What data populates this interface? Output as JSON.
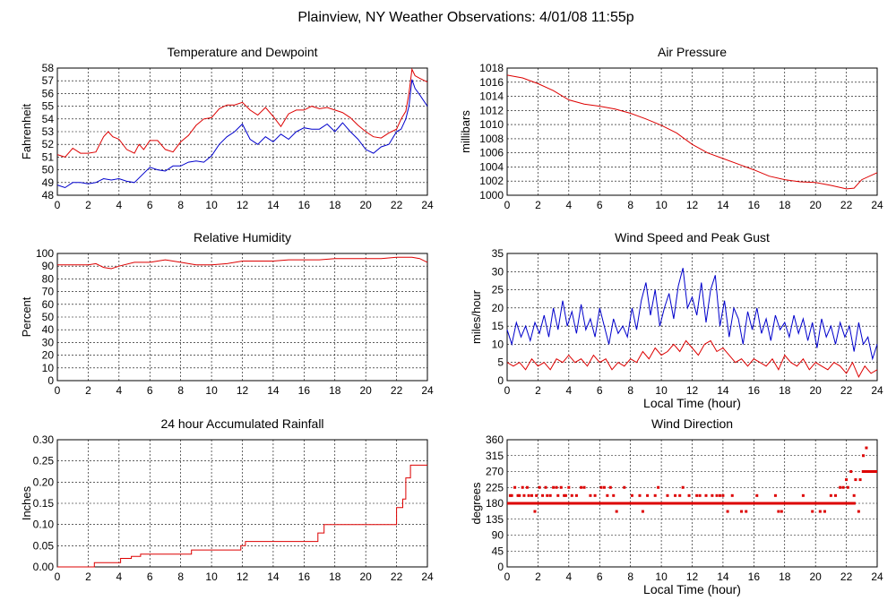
{
  "page_title": "Plainview, NY Weather Observations: 4/01/08 11:55p",
  "colors": {
    "primary": "#dd0000",
    "secondary": "#0000cc",
    "grid": "#000000",
    "text": "#000000"
  },
  "chart_data": [
    {
      "id": "temperature",
      "type": "line",
      "title": "Temperature and Dewpoint",
      "xlabel": "",
      "ylabel": "Fahrenheit",
      "xlim": [
        0,
        24
      ],
      "ylim": [
        48,
        58
      ],
      "xticks": [
        "0",
        "2",
        "4",
        "6",
        "8",
        "10",
        "12",
        "14",
        "16",
        "18",
        "20",
        "22",
        "24"
      ],
      "yticks": [
        "48",
        "49",
        "50",
        "51",
        "52",
        "53",
        "54",
        "55",
        "56",
        "57",
        "58"
      ],
      "grid": true,
      "series": [
        {
          "color": "#dd0000",
          "x": [
            0,
            0.5,
            1,
            1.5,
            2,
            2.5,
            3,
            3.3,
            3.6,
            4,
            4.5,
            5,
            5.3,
            5.6,
            6,
            6.5,
            7,
            7.5,
            8,
            8.5,
            9,
            9.5,
            10,
            10.5,
            11,
            11.5,
            12,
            12.5,
            13,
            13.5,
            14,
            14.5,
            15,
            15.5,
            16,
            16.5,
            17,
            17.5,
            18,
            18.5,
            19,
            19.5,
            20,
            20.5,
            21,
            21.5,
            22,
            22.3,
            22.6,
            22.8,
            23,
            23.2,
            23.5,
            24
          ],
          "y": [
            51.2,
            51.0,
            51.7,
            51.3,
            51.3,
            51.4,
            52.6,
            53.0,
            52.6,
            52.4,
            51.6,
            51.3,
            52.0,
            51.6,
            52.3,
            52.3,
            51.6,
            51.4,
            52.2,
            52.7,
            53.5,
            54.0,
            54.1,
            54.8,
            55.1,
            55.1,
            55.3,
            54.7,
            54.3,
            54.9,
            54.2,
            53.4,
            54.4,
            54.7,
            54.7,
            55.0,
            54.8,
            54.9,
            54.7,
            54.5,
            54.1,
            53.5,
            53.0,
            52.6,
            52.5,
            52.9,
            53.2,
            54.0,
            54.6,
            56.0,
            57.9,
            57.4,
            57.2,
            56.9
          ]
        },
        {
          "color": "#0000cc",
          "x": [
            0,
            0.5,
            1,
            1.5,
            2,
            2.5,
            3,
            3.5,
            4,
            4.5,
            5,
            5.5,
            6,
            6.5,
            7,
            7.5,
            8,
            8.5,
            9,
            9.5,
            10,
            10.5,
            11,
            11.5,
            12,
            12.5,
            13,
            13.5,
            14,
            14.5,
            15,
            15.5,
            16,
            16.5,
            17,
            17.5,
            18,
            18.5,
            19,
            19.5,
            20,
            20.5,
            21,
            21.5,
            22,
            22.3,
            22.6,
            22.8,
            23,
            23.2,
            23.5,
            24
          ],
          "y": [
            48.8,
            48.6,
            49.0,
            49.0,
            48.9,
            49.0,
            49.3,
            49.2,
            49.3,
            49.1,
            49.0,
            49.6,
            50.2,
            50.0,
            49.9,
            50.3,
            50.3,
            50.6,
            50.7,
            50.6,
            51.1,
            52.0,
            52.6,
            53.0,
            53.6,
            52.4,
            52.0,
            52.6,
            52.2,
            52.8,
            52.4,
            53.0,
            53.3,
            53.2,
            53.2,
            53.6,
            53.0,
            53.7,
            53.0,
            52.4,
            51.6,
            51.3,
            51.8,
            52.0,
            53.0,
            53.2,
            54.0,
            55.0,
            57.1,
            56.4,
            55.9,
            55.0
          ]
        }
      ]
    },
    {
      "id": "pressure",
      "type": "line",
      "title": "Air Pressure",
      "xlabel": "",
      "ylabel": "millibars",
      "xlim": [
        0,
        24
      ],
      "ylim": [
        1000,
        1018
      ],
      "xticks": [
        "0",
        "2",
        "4",
        "6",
        "8",
        "10",
        "12",
        "14",
        "16",
        "18",
        "20",
        "22",
        "24"
      ],
      "yticks": [
        "1000",
        "1002",
        "1004",
        "1006",
        "1008",
        "1010",
        "1012",
        "1014",
        "1016",
        "1018"
      ],
      "grid": true,
      "series": [
        {
          "color": "#dd0000",
          "x": [
            0,
            1,
            2,
            3,
            4,
            5,
            6,
            7,
            8,
            9,
            10,
            11,
            12,
            13,
            14,
            15,
            16,
            17,
            18,
            19,
            20,
            21,
            22,
            22.5,
            23,
            24
          ],
          "y": [
            1017.0,
            1016.6,
            1015.8,
            1014.8,
            1013.5,
            1012.9,
            1012.6,
            1012.2,
            1011.6,
            1010.8,
            1009.9,
            1008.8,
            1007.2,
            1006.0,
            1005.2,
            1004.4,
            1003.6,
            1002.7,
            1002.2,
            1001.9,
            1001.8,
            1001.4,
            1000.9,
            1001.0,
            1002.2,
            1003.2
          ]
        }
      ]
    },
    {
      "id": "humidity",
      "type": "line",
      "title": "Relative Humidity",
      "xlabel": "",
      "ylabel": "Percent",
      "xlim": [
        0,
        24
      ],
      "ylim": [
        0,
        100
      ],
      "xticks": [
        "0",
        "2",
        "4",
        "6",
        "8",
        "10",
        "12",
        "14",
        "16",
        "18",
        "20",
        "22",
        "24"
      ],
      "yticks": [
        "0",
        "10",
        "20",
        "30",
        "40",
        "50",
        "60",
        "70",
        "80",
        "90",
        "100"
      ],
      "grid": true,
      "series": [
        {
          "color": "#dd0000",
          "x": [
            0,
            1,
            2,
            2.5,
            3,
            3.5,
            4,
            5,
            6,
            7,
            8,
            9,
            10,
            11,
            12,
            13,
            14,
            15,
            16,
            17,
            18,
            19,
            20,
            21,
            22,
            23,
            23.5,
            24
          ],
          "y": [
            91,
            91,
            91,
            92,
            89,
            88,
            90,
            93,
            93,
            95,
            93,
            91,
            91,
            92,
            94,
            94,
            94,
            95,
            95,
            95,
            96,
            96,
            96,
            96,
            97,
            97,
            96,
            93
          ]
        }
      ]
    },
    {
      "id": "wind",
      "type": "line",
      "title": "Wind Speed and Peak Gust",
      "xlabel": "Local Time (hour)",
      "ylabel": "miles/hour",
      "xlim": [
        0,
        24
      ],
      "ylim": [
        0,
        35
      ],
      "xticks": [
        "0",
        "2",
        "4",
        "6",
        "8",
        "10",
        "12",
        "14",
        "16",
        "18",
        "20",
        "22",
        "24"
      ],
      "yticks": [
        "0",
        "5",
        "10",
        "15",
        "20",
        "25",
        "30",
        "35"
      ],
      "grid": true,
      "series": [
        {
          "color": "#0000cc",
          "x": [
            0,
            0.3,
            0.6,
            0.9,
            1.2,
            1.5,
            1.8,
            2.1,
            2.4,
            2.7,
            3.0,
            3.3,
            3.6,
            3.9,
            4.2,
            4.5,
            4.8,
            5.1,
            5.4,
            5.7,
            6.0,
            6.3,
            6.6,
            6.9,
            7.2,
            7.5,
            7.8,
            8.1,
            8.4,
            8.7,
            9.0,
            9.3,
            9.6,
            9.9,
            10.2,
            10.5,
            10.8,
            11.1,
            11.4,
            11.7,
            12.0,
            12.3,
            12.6,
            12.9,
            13.2,
            13.5,
            13.8,
            14.1,
            14.4,
            14.7,
            15.0,
            15.3,
            15.6,
            15.9,
            16.2,
            16.5,
            16.8,
            17.1,
            17.4,
            17.7,
            18.0,
            18.3,
            18.6,
            18.9,
            19.2,
            19.5,
            19.8,
            20.1,
            20.4,
            20.7,
            21.0,
            21.3,
            21.6,
            21.9,
            22.2,
            22.5,
            22.8,
            23.1,
            23.4,
            23.7,
            24.0
          ],
          "y": [
            14,
            10,
            16,
            12,
            15,
            11,
            16,
            13,
            18,
            12,
            20,
            14,
            22,
            15,
            19,
            13,
            21,
            14,
            17,
            12,
            20,
            15,
            10,
            17,
            13,
            15,
            12,
            20,
            14,
            22,
            27,
            18,
            25,
            15,
            20,
            24,
            17,
            26,
            31,
            20,
            23,
            18,
            27,
            16,
            25,
            29,
            15,
            22,
            12,
            20,
            17,
            10,
            19,
            14,
            20,
            13,
            17,
            11,
            18,
            14,
            16,
            12,
            18,
            13,
            17,
            11,
            16,
            9,
            17,
            12,
            15,
            10,
            16,
            12,
            15,
            8,
            16,
            10,
            12,
            6,
            10
          ]
        },
        {
          "color": "#dd0000",
          "x": [
            0,
            0.4,
            0.8,
            1.2,
            1.6,
            2.0,
            2.4,
            2.8,
            3.2,
            3.6,
            4.0,
            4.4,
            4.8,
            5.2,
            5.6,
            6.0,
            6.4,
            6.8,
            7.2,
            7.6,
            8.0,
            8.4,
            8.8,
            9.2,
            9.6,
            10.0,
            10.4,
            10.8,
            11.2,
            11.6,
            12.0,
            12.4,
            12.8,
            13.2,
            13.6,
            14.0,
            14.4,
            14.8,
            15.2,
            15.6,
            16.0,
            16.4,
            16.8,
            17.2,
            17.6,
            18.0,
            18.4,
            18.8,
            19.2,
            19.6,
            20.0,
            20.4,
            20.8,
            21.2,
            21.6,
            22.0,
            22.4,
            22.8,
            23.2,
            23.6,
            24.0
          ],
          "y": [
            5,
            4,
            5,
            3,
            6,
            4,
            5,
            3,
            6,
            5,
            7,
            5,
            6,
            4,
            7,
            5,
            6,
            3,
            5,
            4,
            6,
            5,
            8,
            6,
            9,
            7,
            8,
            10,
            8,
            11,
            9,
            7,
            10,
            11,
            8,
            9,
            7,
            5,
            6,
            4,
            6,
            5,
            4,
            6,
            3,
            7,
            5,
            4,
            6,
            3,
            5,
            4,
            3,
            5,
            4,
            2,
            5,
            1,
            4,
            2,
            3
          ]
        }
      ]
    },
    {
      "id": "rainfall",
      "type": "line",
      "title": "24 hour Accumulated Rainfall",
      "xlabel": "",
      "ylabel": "Inches",
      "xlim": [
        0,
        24
      ],
      "ylim": [
        0,
        0.3
      ],
      "xticks": [
        "0",
        "2",
        "4",
        "6",
        "8",
        "10",
        "12",
        "14",
        "16",
        "18",
        "20",
        "22",
        "24"
      ],
      "yticks": [
        "0.00",
        "0.05",
        "0.10",
        "0.15",
        "0.20",
        "0.25",
        "0.30"
      ],
      "grid": true,
      "series": [
        {
          "color": "#dd0000",
          "step": true,
          "x": [
            0,
            2.4,
            2.4,
            4.1,
            4.1,
            4.8,
            4.8,
            5.4,
            5.4,
            8.7,
            8.7,
            11.9,
            11.9,
            12.2,
            12.2,
            16.9,
            16.9,
            17.3,
            17.3,
            22.0,
            22.0,
            22.4,
            22.4,
            22.6,
            22.6,
            22.9,
            22.9,
            24.0
          ],
          "y": [
            0.0,
            0.0,
            0.01,
            0.01,
            0.02,
            0.02,
            0.025,
            0.025,
            0.03,
            0.03,
            0.04,
            0.04,
            0.05,
            0.05,
            0.06,
            0.06,
            0.08,
            0.08,
            0.1,
            0.1,
            0.14,
            0.14,
            0.16,
            0.16,
            0.21,
            0.21,
            0.24,
            0.24
          ]
        }
      ]
    },
    {
      "id": "direction",
      "type": "scatter",
      "title": "Wind Direction",
      "xlabel": "Local Time (hour)",
      "ylabel": "degrees",
      "xlim": [
        0,
        24
      ],
      "ylim": [
        0,
        360
      ],
      "xticks": [
        "0",
        "2",
        "4",
        "6",
        "8",
        "10",
        "12",
        "14",
        "16",
        "18",
        "20",
        "22",
        "24"
      ],
      "yticks": [
        "0",
        "45",
        "90",
        "135",
        "180",
        "225",
        "270",
        "315",
        "360"
      ],
      "grid": true,
      "baseline": {
        "from": 0,
        "to": 22.6,
        "value": 180
      },
      "baseline2": {
        "from": 23.0,
        "to": 24.0,
        "value": 270
      },
      "series": [
        {
          "color": "#dd0000",
          "x": [
            0.2,
            0.3,
            0.5,
            0.7,
            0.8,
            1.0,
            1.1,
            1.3,
            1.4,
            1.6,
            1.8,
            1.9,
            2.1,
            2.3,
            2.5,
            2.6,
            2.8,
            3.0,
            3.2,
            3.3,
            3.5,
            3.7,
            3.8,
            4.0,
            4.2,
            4.5,
            4.8,
            5.0,
            5.4,
            5.7,
            6.1,
            6.3,
            6.5,
            6.7,
            6.9,
            7.1,
            7.6,
            8.1,
            8.6,
            8.8,
            9.1,
            9.6,
            9.8,
            10.4,
            10.9,
            11.2,
            11.4,
            11.8,
            12.3,
            12.5,
            12.9,
            13.3,
            13.6,
            13.8,
            14.0,
            14.3,
            14.6,
            15.2,
            15.5,
            16.2,
            17.4,
            17.6,
            17.8,
            19.2,
            19.8,
            20.3,
            20.6,
            21.0,
            21.3,
            21.6,
            21.8,
            22.0,
            22.1,
            22.3,
            22.5,
            22.6,
            22.8,
            22.9,
            23.1,
            23.3
          ],
          "y": [
            202,
            202,
            225,
            202,
            202,
            225,
            202,
            225,
            202,
            202,
            157,
            202,
            225,
            202,
            225,
            202,
            202,
            225,
            225,
            202,
            225,
            202,
            202,
            225,
            202,
            202,
            225,
            225,
            202,
            202,
            225,
            225,
            202,
            225,
            202,
            157,
            225,
            202,
            202,
            157,
            202,
            202,
            225,
            202,
            202,
            202,
            225,
            202,
            202,
            202,
            202,
            202,
            202,
            202,
            202,
            157,
            202,
            157,
            157,
            202,
            202,
            157,
            157,
            202,
            157,
            157,
            157,
            202,
            202,
            225,
            225,
            247,
            225,
            270,
            202,
            247,
            157,
            247,
            315,
            337
          ]
        }
      ]
    }
  ]
}
